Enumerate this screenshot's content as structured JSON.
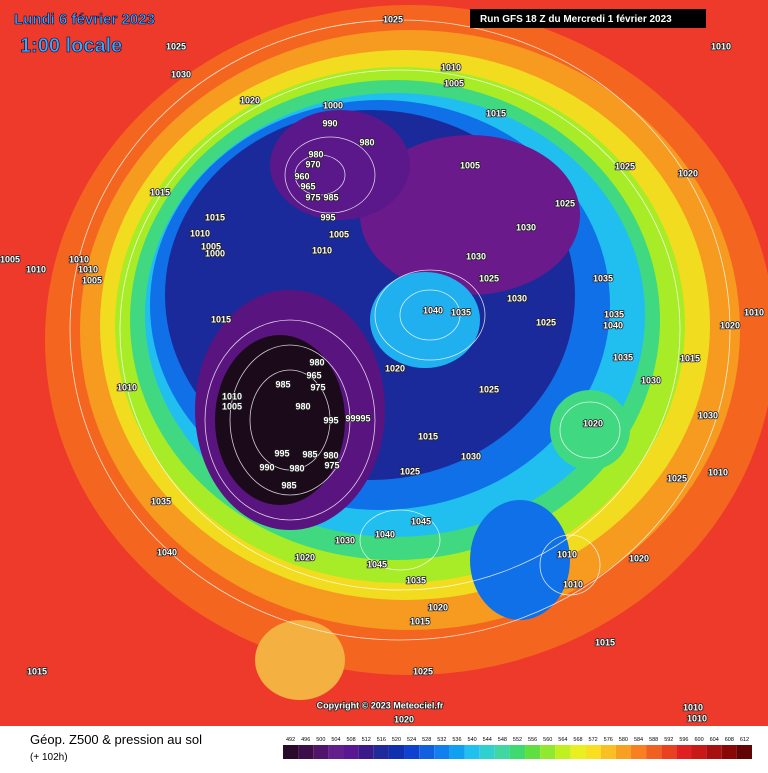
{
  "header": {
    "date": "Lundi 6 février 2023",
    "time": "1:00 locale",
    "run": "Run GFS 18 Z du Mercredi 1 février 2023"
  },
  "map": {
    "pressure_labels": [
      1025,
      1025,
      1030,
      1010,
      1010,
      1005,
      1020,
      1000,
      990,
      980,
      980,
      970,
      960,
      965,
      975,
      985,
      995,
      1005,
      1010,
      1015,
      1005,
      1025,
      1020,
      1025,
      1030,
      1030,
      1025,
      1030,
      1035,
      1040,
      1035,
      1035,
      1040,
      1025,
      1020,
      1010,
      1015,
      1015,
      1010,
      1005,
      1000,
      1005,
      1010,
      1010,
      1010,
      1005,
      1015,
      1010,
      1035,
      1015,
      1030,
      1020,
      1025,
      1030,
      980,
      965,
      975,
      985,
      1010,
      1005,
      980,
      995,
      1015,
      1020,
      995,
      990,
      980,
      985,
      985,
      980,
      975,
      1030,
      1025,
      1010,
      1025,
      1035,
      1045,
      1040,
      1030,
      1040,
      1020,
      1045,
      1010,
      1020,
      1035,
      1010,
      1020,
      1015,
      1015,
      1015,
      1025,
      1020,
      1010,
      1010,
      99995
    ],
    "copyright": "Copyright © 2023 Meteociel.fr"
  },
  "footer": {
    "title": "Géop. Z500 & pression au sol",
    "subtitle": "(+ 102h)"
  },
  "legend": {
    "values": [
      492,
      496,
      500,
      504,
      508,
      512,
      516,
      520,
      524,
      528,
      532,
      536,
      540,
      544,
      548,
      552,
      556,
      560,
      564,
      568,
      572,
      576,
      580,
      584,
      588,
      592,
      596,
      600,
      604,
      608,
      612
    ],
    "colors": [
      "#2a0a2a",
      "#3d0d4a",
      "#50146a",
      "#64208a",
      "#5a1890",
      "#3a1a8a",
      "#202a9a",
      "#1030b0",
      "#1040d0",
      "#1060e0",
      "#1080f0",
      "#10a0f0",
      "#20c0f0",
      "#30d0d0",
      "#40d8a0",
      "#40d870",
      "#60e040",
      "#90e830",
      "#c0f020",
      "#e8f020",
      "#f8e020",
      "#f8c020",
      "#f8a020",
      "#f88020",
      "#f06020",
      "#e84020",
      "#e02020",
      "#c81818",
      "#a81010",
      "#880808",
      "#600404"
    ]
  }
}
